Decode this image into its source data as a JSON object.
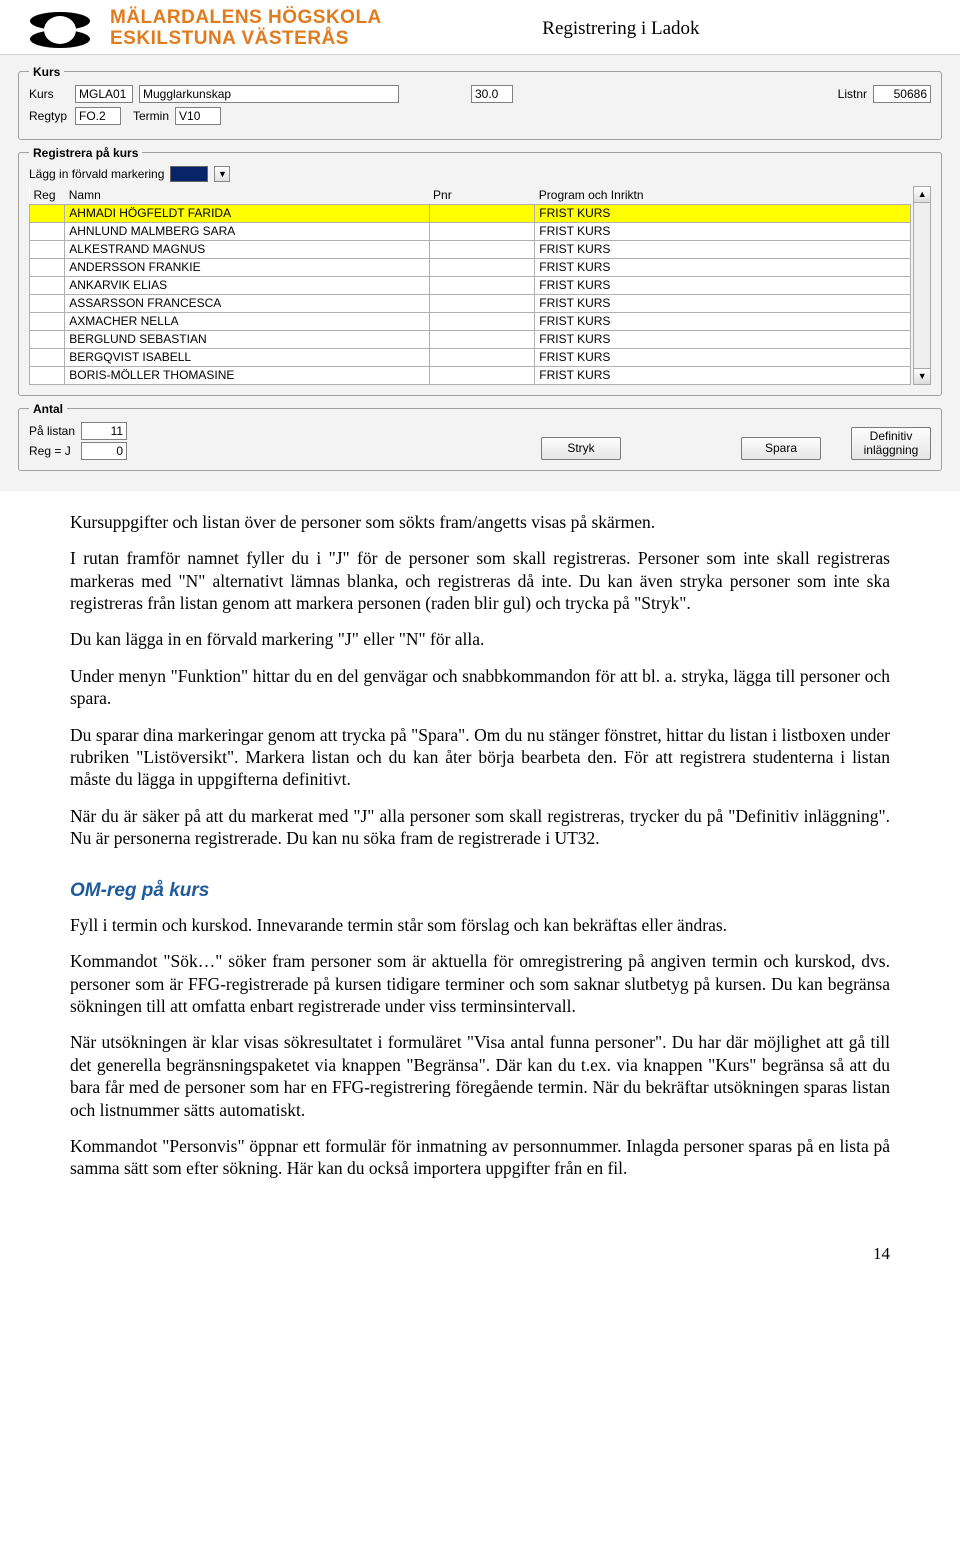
{
  "header": {
    "org_line1": "MÄLARDALENS HÖGSKOLA",
    "org_line2": "ESKILSTUNA VÄSTERÅS",
    "title": "Registrering i Ladok"
  },
  "kurs_panel": {
    "legend": "Kurs",
    "labels": {
      "kurs": "Kurs",
      "regtyp": "Regtyp",
      "termin": "Termin",
      "listnr": "Listnr"
    },
    "values": {
      "kurskod": "MGLA01",
      "kursnamn": "Mugglarkunskap",
      "poang": "30.0",
      "regtyp": "FO.2",
      "termin": "V10",
      "listnr": "50686"
    }
  },
  "reg_panel": {
    "legend": "Registrera på kurs",
    "preselect_label": "Lägg in förvald markering",
    "columns": {
      "reg": "Reg",
      "namn": "Namn",
      "pnr": "Pnr",
      "prog": "Program och Inriktn"
    },
    "rows": [
      {
        "namn": "AHMADI HÖGFELDT FARIDA",
        "prog": "FRIST KURS",
        "highlight": true
      },
      {
        "namn": "AHNLUND MALMBERG SARA",
        "prog": "FRIST KURS"
      },
      {
        "namn": "ALKESTRAND MAGNUS",
        "prog": "FRIST KURS"
      },
      {
        "namn": "ANDERSSON FRANKIE",
        "prog": "FRIST KURS"
      },
      {
        "namn": "ANKARVIK ELIAS",
        "prog": "FRIST KURS"
      },
      {
        "namn": "ASSARSSON FRANCESCA",
        "prog": "FRIST KURS"
      },
      {
        "namn": "AXMACHER NELLA",
        "prog": "FRIST KURS"
      },
      {
        "namn": "BERGLUND SEBASTIAN",
        "prog": "FRIST KURS"
      },
      {
        "namn": "BERGQVIST ISABELL",
        "prog": "FRIST KURS"
      },
      {
        "namn": "BORIS-MÖLLER THOMASINE",
        "prog": "FRIST KURS"
      }
    ]
  },
  "antal_panel": {
    "legend": "Antal",
    "labels": {
      "pa_listan": "På listan",
      "reg_j": "Reg = J"
    },
    "values": {
      "pa_listan": "11",
      "reg_j": "0"
    },
    "buttons": {
      "stryk": "Stryk",
      "spara": "Spara",
      "definitiv": "Definitiv\ninläggning"
    }
  },
  "doc": {
    "p1": "Kursuppgifter och listan över de personer som sökts fram/angetts visas på skärmen.",
    "p2": "I rutan framför namnet fyller du i \"J\" för de personer som skall registreras. Personer som inte skall registreras markeras med \"N\" alternativt lämnas blanka, och registreras då inte. Du kan även stryka personer som inte ska registreras från listan genom att markera personen (raden blir gul) och trycka på \"Stryk\".",
    "p3": "Du kan lägga in en förvald markering \"J\" eller \"N\" för alla.",
    "p4": "Under menyn \"Funktion\" hittar du en del genvägar och snabbkommandon för att bl. a. stryka, lägga till personer och spara.",
    "p5": "Du sparar dina markeringar genom att trycka på \"Spara\". Om du nu stänger fönstret, hittar du listan i listboxen under rubriken \"Listöversikt\". Markera listan och du kan åter börja bearbeta den. För att registrera studenterna i listan måste du lägga in uppgifterna definitivt.",
    "p6": "När du är säker på att du markerat med \"J\" alla personer som skall registreras, trycker du på \"Definitiv inläggning\". Nu är personerna registrerade. Du kan nu söka fram de registrerade i UT32.",
    "section_title": "OM-reg på kurs",
    "p7": "Fyll i termin och kurskod. Innevarande termin står som förslag och kan bekräftas eller ändras.",
    "p8": "Kommandot \"Sök…\" söker fram personer som är aktuella för omregistrering på angiven termin och kurskod, dvs. personer som är FFG-registrerade på kursen tidigare terminer och som saknar slutbetyg på kursen. Du kan begränsa sökningen till att omfatta enbart registrerade under viss terminsintervall.",
    "p9": "När utsökningen är klar visas sökresultatet i formuläret \"Visa antal funna personer\". Du har där möjlighet att gå till det generella begränsningspaketet via knappen \"Begränsa\". Där kan du t.ex. via knappen \"Kurs\" begränsa så att du bara får med de personer som har en FFG-registrering föregående termin. När du bekräftar utsökningen sparas listan och listnummer sätts automatiskt.",
    "p10": "Kommandot \"Personvis\" öppnar ett formulär för inmatning av personnummer. Inlagda personer sparas på en lista på samma sätt som efter sökning. Här kan du också importera uppgifter från en fil."
  },
  "page_number": "14"
}
